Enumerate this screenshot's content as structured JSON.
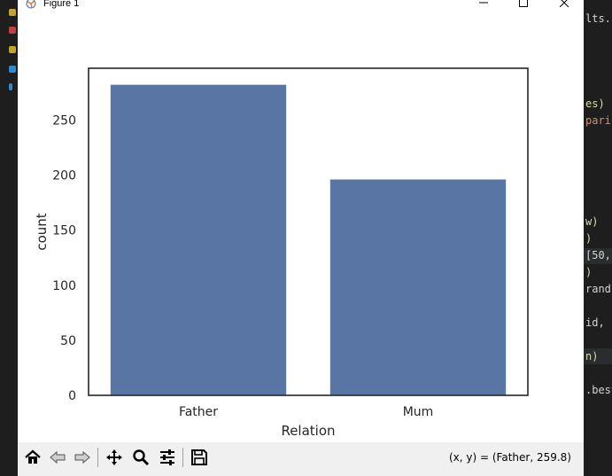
{
  "window": {
    "title": "Figure 1"
  },
  "chart_data": {
    "type": "bar",
    "categories": [
      "Father",
      "Mum"
    ],
    "values": [
      282,
      196
    ],
    "xlabel": "Relation",
    "ylabel": "count",
    "ylim": [
      0,
      297
    ],
    "yticks": [
      0,
      50,
      100,
      150,
      200,
      250
    ],
    "ytick_labels": [
      "0",
      "50",
      "100",
      "150",
      "200",
      "250"
    ],
    "bar_color": "#5875a4",
    "grid": false
  },
  "toolbar": {
    "coordinates": "(x, y) = (Father, 259.8)"
  },
  "editor": {
    "right_fragments": [
      "lts.r",
      "es)",
      "paris",
      "w)",
      ")",
      "[50,",
      ")",
      " rand",
      "id, s",
      "n)",
      ".best"
    ]
  }
}
